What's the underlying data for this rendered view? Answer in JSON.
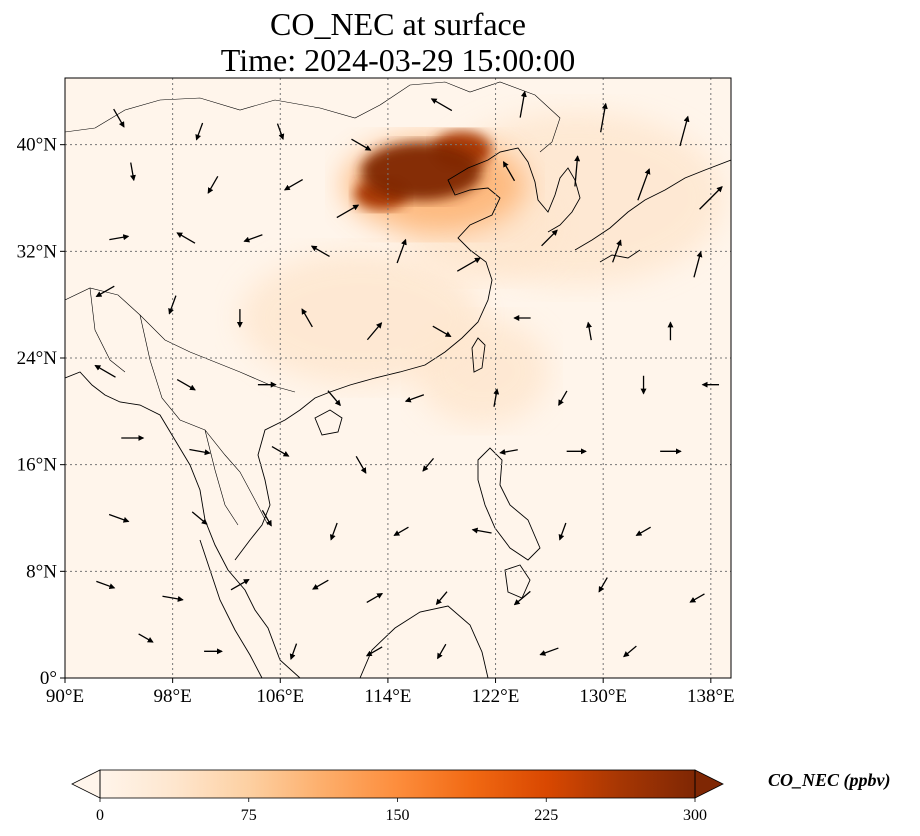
{
  "title": "CO_NEC at surface",
  "subtitle": "Time: 2024-03-29 15:00:00",
  "map": {
    "lon_range": [
      90,
      139.5
    ],
    "lat_range": [
      0,
      45
    ],
    "lon_ticks": [
      {
        "value": 90,
        "label": "90°E"
      },
      {
        "value": 98,
        "label": "98°E"
      },
      {
        "value": 106,
        "label": "106°E"
      },
      {
        "value": 114,
        "label": "114°E"
      },
      {
        "value": 122,
        "label": "122°E"
      },
      {
        "value": 130,
        "label": "130°E"
      },
      {
        "value": 138,
        "label": "138°E"
      }
    ],
    "lat_ticks": [
      {
        "value": 0,
        "label": "0°"
      },
      {
        "value": 8,
        "label": "8°N"
      },
      {
        "value": 16,
        "label": "16°N"
      },
      {
        "value": 24,
        "label": "24°N"
      },
      {
        "value": 32,
        "label": "32°N"
      },
      {
        "value": 40,
        "label": "40°N"
      }
    ],
    "gridlines": true,
    "background_color": "#fff5eb",
    "plume_regions": [
      {
        "lon": 116.5,
        "lat": 38.0,
        "r_lon": 4.5,
        "r_lat": 2.2,
        "level": 300
      },
      {
        "lon": 119.5,
        "lat": 39.6,
        "r_lon": 2.2,
        "r_lat": 1.4,
        "level": 280
      },
      {
        "lon": 113.5,
        "lat": 36.3,
        "r_lon": 2.0,
        "r_lat": 1.2,
        "level": 260
      },
      {
        "lon": 117.5,
        "lat": 37.0,
        "r_lon": 6.8,
        "r_lat": 3.6,
        "level": 110
      },
      {
        "lon": 121.0,
        "lat": 34.0,
        "r_lon": 6.0,
        "r_lat": 4.0,
        "level": 40
      },
      {
        "lon": 128.0,
        "lat": 36.0,
        "r_lon": 11.0,
        "r_lat": 6.5,
        "level": 22
      },
      {
        "lon": 112.0,
        "lat": 27.0,
        "r_lon": 9.0,
        "r_lat": 5.0,
        "level": 22
      },
      {
        "lon": 121.0,
        "lat": 23.0,
        "r_lon": 5.0,
        "r_lat": 4.0,
        "level": 20
      }
    ],
    "wind_vectors": [
      [
        94,
        42,
        150,
        0.9
      ],
      [
        100,
        41,
        200,
        0.7
      ],
      [
        106,
        41,
        160,
        0.6
      ],
      [
        112,
        40,
        120,
        1.0
      ],
      [
        118,
        43,
        300,
        1.1
      ],
      [
        124,
        43,
        10,
        1.3
      ],
      [
        130,
        42,
        10,
        1.5
      ],
      [
        136,
        41,
        15,
        1.6
      ],
      [
        95,
        38,
        170,
        0.7
      ],
      [
        101,
        37,
        210,
        0.8
      ],
      [
        107,
        37,
        240,
        0.9
      ],
      [
        111,
        35,
        60,
        1.2
      ],
      [
        123,
        38,
        330,
        1.0
      ],
      [
        128,
        38,
        5,
        1.6
      ],
      [
        133,
        37,
        20,
        1.8
      ],
      [
        138,
        36,
        45,
        1.7
      ],
      [
        94,
        33,
        80,
        0.8
      ],
      [
        99,
        33,
        300,
        0.9
      ],
      [
        104,
        33,
        250,
        0.8
      ],
      [
        109,
        32,
        300,
        0.9
      ],
      [
        115,
        32,
        20,
        1.2
      ],
      [
        120,
        31,
        60,
        1.3
      ],
      [
        126,
        33,
        45,
        1.0
      ],
      [
        131,
        32,
        20,
        1.1
      ],
      [
        137,
        31,
        15,
        1.3
      ],
      [
        93,
        29,
        240,
        0.9
      ],
      [
        98,
        28,
        200,
        0.8
      ],
      [
        103,
        27,
        180,
        0.7
      ],
      [
        108,
        27,
        330,
        0.9
      ],
      [
        113,
        26,
        40,
        1.0
      ],
      [
        118,
        26,
        120,
        0.9
      ],
      [
        124,
        27,
        270,
        0.6
      ],
      [
        129,
        26,
        350,
        0.7
      ],
      [
        135,
        26,
        0,
        0.7
      ],
      [
        93,
        23,
        300,
        1.1
      ],
      [
        99,
        22,
        120,
        0.9
      ],
      [
        105,
        22,
        90,
        0.7
      ],
      [
        110,
        21,
        140,
        0.8
      ],
      [
        116,
        21,
        250,
        0.8
      ],
      [
        122,
        21,
        10,
        0.7
      ],
      [
        127,
        21,
        210,
        0.6
      ],
      [
        133,
        22,
        180,
        0.7
      ],
      [
        138,
        22,
        270,
        0.6
      ],
      [
        95,
        18,
        90,
        1.0
      ],
      [
        100,
        17,
        100,
        0.9
      ],
      [
        106,
        17,
        120,
        0.8
      ],
      [
        112,
        16,
        150,
        0.8
      ],
      [
        117,
        16,
        220,
        0.6
      ],
      [
        123,
        17,
        260,
        0.7
      ],
      [
        128,
        17,
        90,
        0.8
      ],
      [
        135,
        17,
        90,
        0.9
      ],
      [
        94,
        12,
        110,
        0.9
      ],
      [
        100,
        12,
        130,
        0.8
      ],
      [
        105,
        12,
        150,
        0.7
      ],
      [
        110,
        11,
        200,
        0.7
      ],
      [
        115,
        11,
        240,
        0.6
      ],
      [
        121,
        11,
        280,
        0.8
      ],
      [
        127,
        11,
        200,
        0.7
      ],
      [
        133,
        11,
        240,
        0.6
      ],
      [
        93,
        7,
        110,
        0.8
      ],
      [
        98,
        6,
        100,
        0.9
      ],
      [
        103,
        7,
        60,
        0.9
      ],
      [
        109,
        7,
        240,
        0.7
      ],
      [
        113,
        6,
        60,
        0.7
      ],
      [
        118,
        6,
        220,
        0.6
      ],
      [
        124,
        6,
        230,
        0.9
      ],
      [
        130,
        7,
        210,
        0.6
      ],
      [
        137,
        6,
        240,
        0.6
      ],
      [
        96,
        3,
        120,
        0.6
      ],
      [
        101,
        2,
        90,
        0.7
      ],
      [
        107,
        2,
        200,
        0.6
      ],
      [
        113,
        2,
        240,
        0.7
      ],
      [
        118,
        2,
        210,
        0.6
      ],
      [
        126,
        2,
        250,
        0.8
      ],
      [
        132,
        2,
        230,
        0.6
      ]
    ]
  },
  "colorbar": {
    "label": "CO_NEC (ppbv)",
    "vmin": 0,
    "vmax": 300,
    "ticks": [
      "0",
      "75",
      "150",
      "225",
      "300"
    ],
    "tick_values": [
      0,
      75,
      150,
      225,
      300
    ],
    "colormap": [
      "#fff5eb",
      "#fee6ce",
      "#fdd0a2",
      "#fdae6b",
      "#fd8d3c",
      "#f16913",
      "#d94801",
      "#a63603",
      "#7f2704"
    ],
    "extend": "both"
  }
}
